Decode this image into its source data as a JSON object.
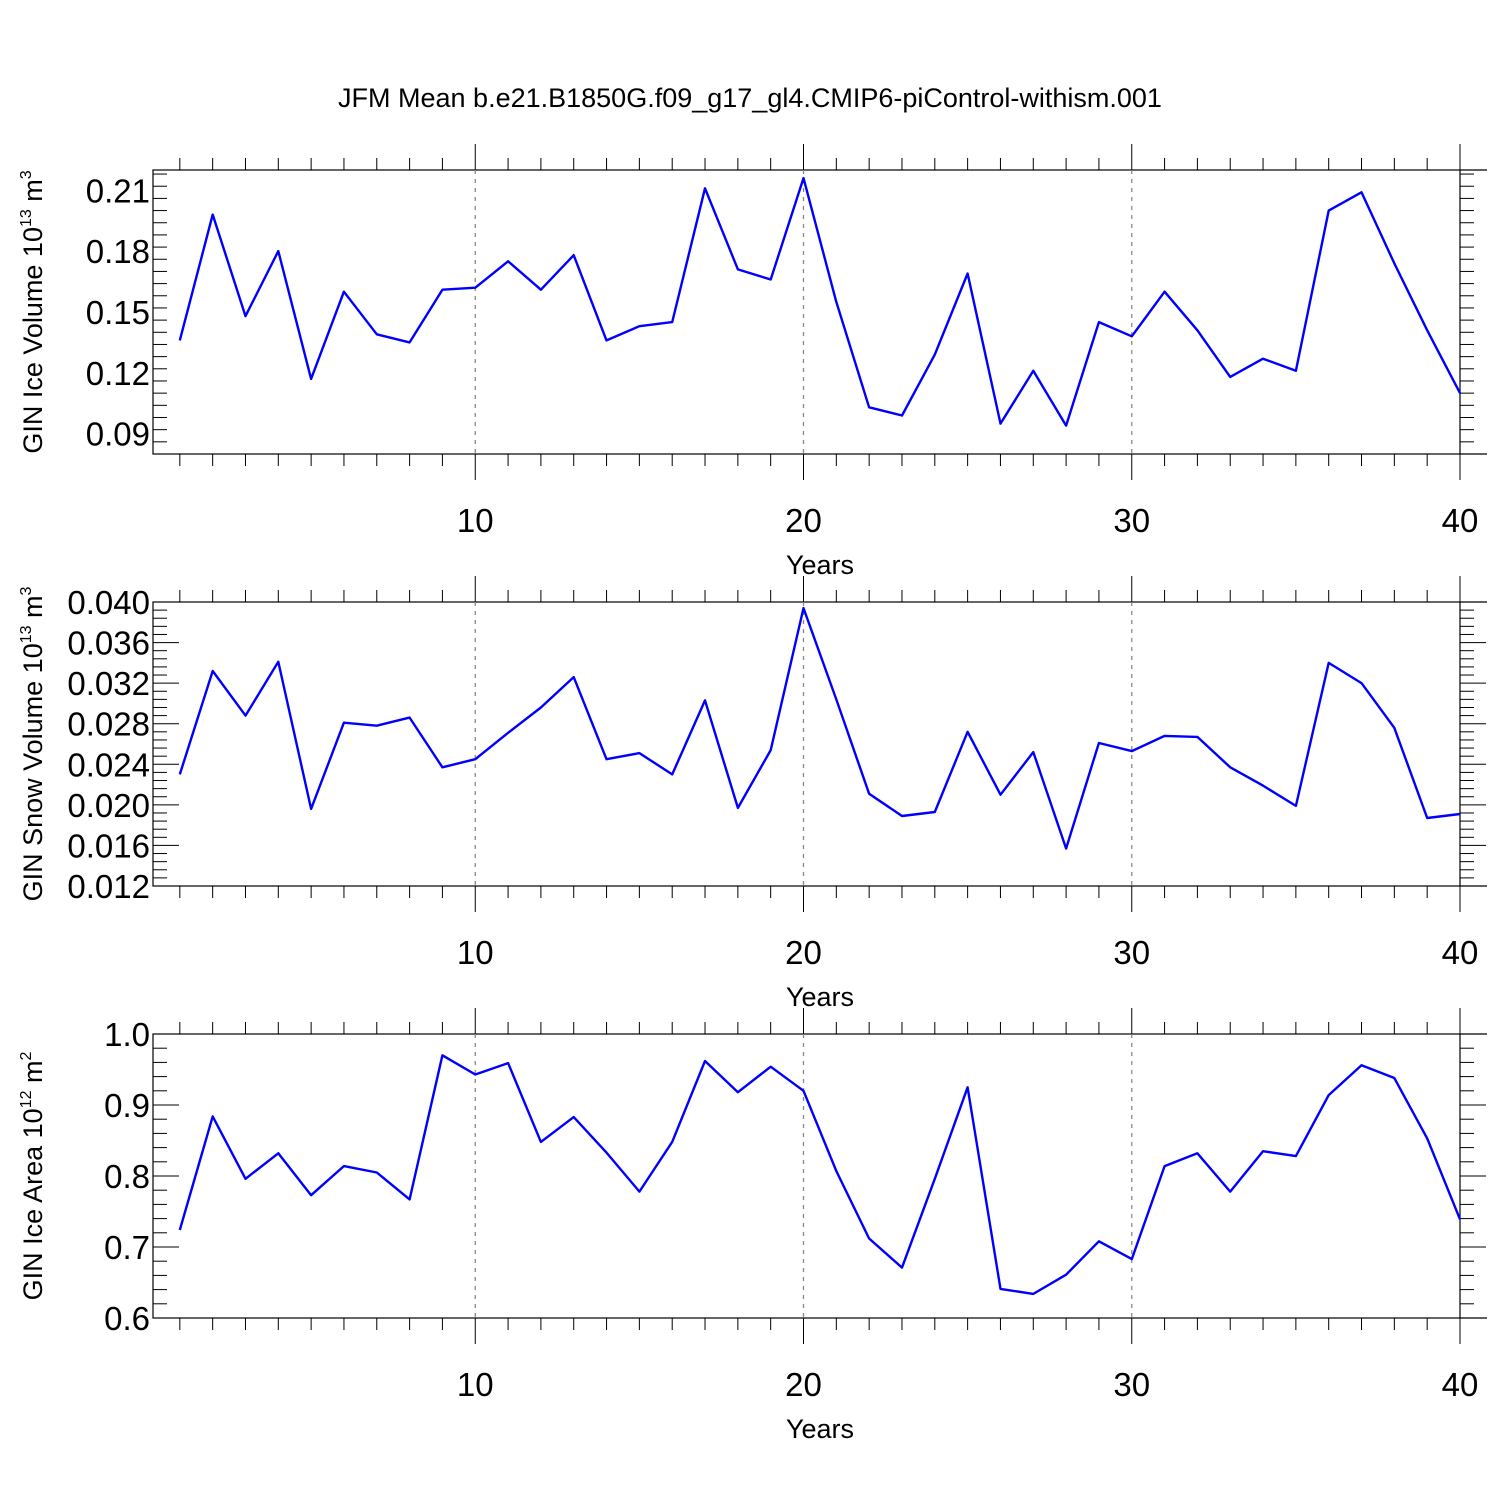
{
  "figure": {
    "title": "JFM Mean b.e21.B1850G.f09_g17_gl4.CMIP6-piControl-withism.001"
  },
  "chart_data": [
    {
      "type": "line",
      "ylabel": {
        "main": "GIN Ice Volume 10",
        "exp": "13",
        "unit": " m",
        "unit_exp": "3"
      },
      "xlabel": "Years",
      "xlim": [
        1,
        40
      ],
      "ylim": [
        0.08,
        0.22
      ],
      "xticks": [
        "10",
        "20",
        "30",
        "40"
      ],
      "yticks": [
        "0.09",
        "0.12",
        "0.15",
        "0.18",
        "0.21"
      ],
      "line_color": "#0000ff",
      "x": [
        1,
        2,
        3,
        4,
        5,
        6,
        7,
        8,
        9,
        10,
        11,
        12,
        13,
        14,
        15,
        16,
        17,
        18,
        19,
        20,
        21,
        22,
        23,
        24,
        25,
        26,
        27,
        28,
        29,
        30,
        31,
        32,
        33,
        34,
        35,
        36,
        37,
        38,
        39,
        40
      ],
      "values": [
        0.136,
        0.198,
        0.148,
        0.18,
        0.117,
        0.16,
        0.139,
        0.135,
        0.161,
        0.162,
        0.175,
        0.161,
        0.178,
        0.136,
        0.143,
        0.145,
        0.211,
        0.171,
        0.166,
        0.216,
        0.155,
        0.103,
        0.099,
        0.129,
        0.169,
        0.095,
        0.121,
        0.094,
        0.145,
        0.138,
        0.16,
        0.141,
        0.118,
        0.127,
        0.121,
        0.2,
        0.209,
        0.174,
        0.141,
        0.11
      ]
    },
    {
      "type": "line",
      "ylabel": {
        "main": "GIN Snow Volume 10",
        "exp": "13",
        "unit": " m",
        "unit_exp": "3"
      },
      "xlabel": "Years",
      "xlim": [
        1,
        40
      ],
      "ylim": [
        0.012,
        0.04
      ],
      "xticks": [
        "10",
        "20",
        "30",
        "40"
      ],
      "yticks": [
        "0.012",
        "0.016",
        "0.020",
        "0.024",
        "0.028",
        "0.032",
        "0.036",
        "0.040"
      ],
      "line_color": "#0000ff",
      "x": [
        1,
        2,
        3,
        4,
        5,
        6,
        7,
        8,
        9,
        10,
        11,
        12,
        13,
        14,
        15,
        16,
        17,
        18,
        19,
        20,
        21,
        22,
        23,
        24,
        25,
        26,
        27,
        28,
        29,
        30,
        31,
        32,
        33,
        34,
        35,
        36,
        37,
        38,
        39,
        40
      ],
      "values": [
        0.023,
        0.0332,
        0.0288,
        0.0341,
        0.0196,
        0.0281,
        0.0278,
        0.0286,
        0.0237,
        0.0245,
        0.0271,
        0.0296,
        0.0326,
        0.0245,
        0.0251,
        0.023,
        0.0303,
        0.0197,
        0.0254,
        0.0394,
        0.0304,
        0.0211,
        0.0189,
        0.0193,
        0.0272,
        0.021,
        0.0252,
        0.0157,
        0.0261,
        0.0253,
        0.0268,
        0.0267,
        0.0237,
        0.0219,
        0.0199,
        0.034,
        0.032,
        0.0276,
        0.0187,
        0.0191
      ]
    },
    {
      "type": "line",
      "ylabel": {
        "main": "GIN Ice Area 10",
        "exp": "12",
        "unit": " m",
        "unit_exp": "2"
      },
      "xlabel": "Years",
      "xlim": [
        1,
        40
      ],
      "ylim": [
        0.6,
        1.0
      ],
      "xticks": [
        "10",
        "20",
        "30",
        "40"
      ],
      "yticks": [
        "0.6",
        "0.7",
        "0.8",
        "0.9",
        "1.0"
      ],
      "line_color": "#0000ff",
      "x": [
        1,
        2,
        3,
        4,
        5,
        6,
        7,
        8,
        9,
        10,
        11,
        12,
        13,
        14,
        15,
        16,
        17,
        18,
        19,
        20,
        21,
        22,
        23,
        24,
        25,
        26,
        27,
        28,
        29,
        30,
        31,
        32,
        33,
        34,
        35,
        36,
        37,
        38,
        39,
        40
      ],
      "values": [
        0.724,
        0.884,
        0.796,
        0.832,
        0.773,
        0.814,
        0.805,
        0.767,
        0.97,
        0.943,
        0.959,
        0.848,
        0.883,
        0.833,
        0.778,
        0.848,
        0.962,
        0.918,
        0.954,
        0.92,
        0.807,
        0.712,
        0.671,
        0.796,
        0.925,
        0.641,
        0.634,
        0.661,
        0.708,
        0.683,
        0.814,
        0.832,
        0.778,
        0.835,
        0.828,
        0.914,
        0.956,
        0.938,
        0.853,
        0.739
      ]
    }
  ]
}
